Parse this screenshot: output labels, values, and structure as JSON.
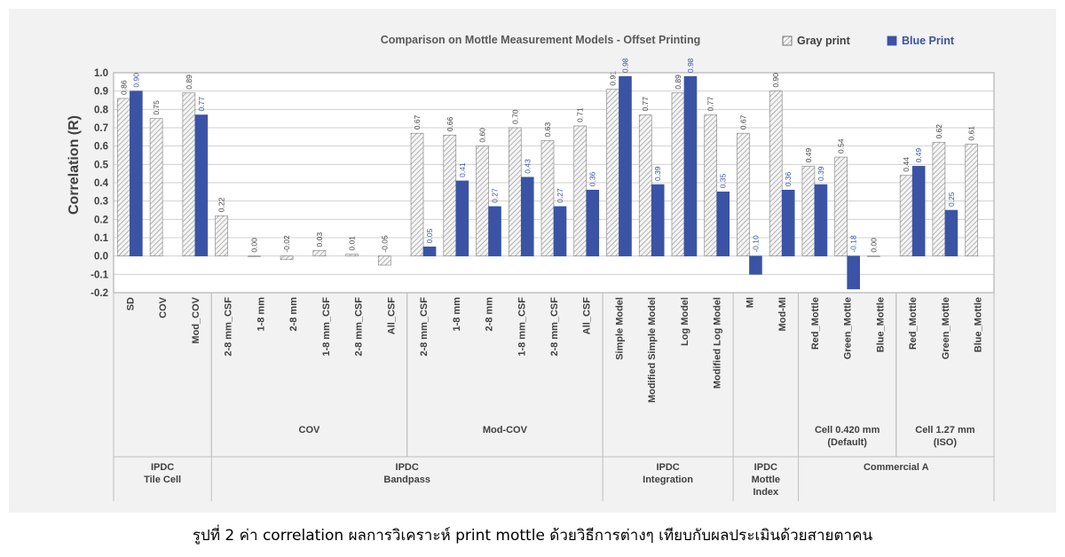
{
  "caption": "รูปที่ 2 ค่า correlation ผลการวิเคราะห์ print mottle ด้วยวิธีการต่างๆ เทียบกับผลประเมินด้วยสายตาคน",
  "chart_data": {
    "type": "bar",
    "title": "Comparison on Mottle Measurement Models - Offset Printing",
    "ylabel": "Correlation (R)",
    "xlabel": "",
    "ylim": [
      -0.2,
      1.0
    ],
    "yticks": [
      "-0.2",
      "-0.1",
      "0.0",
      "0.1",
      "0.2",
      "0.3",
      "0.4",
      "0.5",
      "0.6",
      "0.7",
      "0.8",
      "0.9",
      "1.0"
    ],
    "grid": true,
    "legend_position": "top-right",
    "categories": [
      "SD",
      "COV",
      "Mod_COV",
      "2-8 mm_CSF",
      "1-8 mm",
      "2-8 mm",
      "1-8 mm_CSF",
      "2-8 mm_CSF",
      "All_CSF",
      "2-8 mm_CSF",
      "1-8 mm",
      "2-8 mm",
      "1-8 mm_CSF",
      "2-8 mm_CSF",
      "All_CSF",
      "Simple Model",
      "Modified Simple Model",
      "Log Model",
      "Modified Log Model",
      "MI",
      "Mod-MI",
      "Red_Mottle",
      "Green_Mottle",
      "Blue_Mottle",
      "Red_Mottle",
      "Green_Mottle",
      "Blue_Mottle"
    ],
    "series": [
      {
        "name": "Gray print",
        "color": "#d9d9d9",
        "pattern": "hatched",
        "values": [
          0.86,
          0.75,
          0.89,
          0.22,
          0.0,
          -0.02,
          0.03,
          0.01,
          -0.05,
          0.67,
          0.66,
          0.6,
          0.7,
          0.63,
          0.71,
          0.91,
          0.77,
          0.89,
          0.77,
          0.67,
          0.9,
          0.49,
          0.54,
          0.0,
          0.44,
          0.62,
          0.61
        ],
        "labels": [
          "0.86",
          "0.75",
          "0.89",
          "0.22",
          "0.00",
          "-0.02",
          "0.03",
          "0.01",
          "-0.05",
          "0.67",
          "0.66",
          "0.60",
          "0.70",
          "0.63",
          "0.71",
          "0.91",
          "0.77",
          "0.89",
          "0.77",
          "0.67",
          "0.90",
          "0.49",
          "0.54",
          "0.00",
          "0.44",
          "0.62",
          "0.61"
        ]
      },
      {
        "name": "Blue Print",
        "color": "#3a53a4",
        "pattern": "solid",
        "values": [
          0.9,
          null,
          0.77,
          null,
          null,
          null,
          null,
          null,
          null,
          0.05,
          0.41,
          0.27,
          0.43,
          0.27,
          0.36,
          0.98,
          0.39,
          0.98,
          0.35,
          -0.1,
          0.36,
          0.39,
          -0.18,
          null,
          0.49,
          0.25,
          null
        ],
        "labels": [
          "0.90",
          "",
          "0.77",
          "",
          "",
          "",
          "",
          "",
          "",
          "0.05",
          "0.41",
          "0.27",
          "0.43",
          "0.27",
          "0.36",
          "0.98",
          "0.39",
          "0.98",
          "0.35",
          "-0.10",
          "0.36",
          "0.39",
          "-0.18",
          "",
          "0.49",
          "0.25",
          ""
        ]
      }
    ],
    "subgroups": [
      {
        "label": "COV",
        "start": 3,
        "end": 8
      },
      {
        "label": "Mod-COV",
        "start": 9,
        "end": 14
      },
      {
        "label": "Cell 0.420 mm\n(Default)",
        "start": 21,
        "end": 23
      },
      {
        "label": "Cell 1.27 mm\n(ISO)",
        "start": 24,
        "end": 26
      }
    ],
    "groups": [
      {
        "label": "IPDC\nTile Cell",
        "start": 0,
        "end": 2
      },
      {
        "label": "IPDC\nBandpass",
        "start": 3,
        "end": 14
      },
      {
        "label": "IPDC\nIntegration",
        "start": 15,
        "end": 18
      },
      {
        "label": "IPDC\nMottle\nIndex",
        "start": 19,
        "end": 20
      },
      {
        "label": "Commercial A",
        "start": 21,
        "end": 26
      }
    ]
  }
}
